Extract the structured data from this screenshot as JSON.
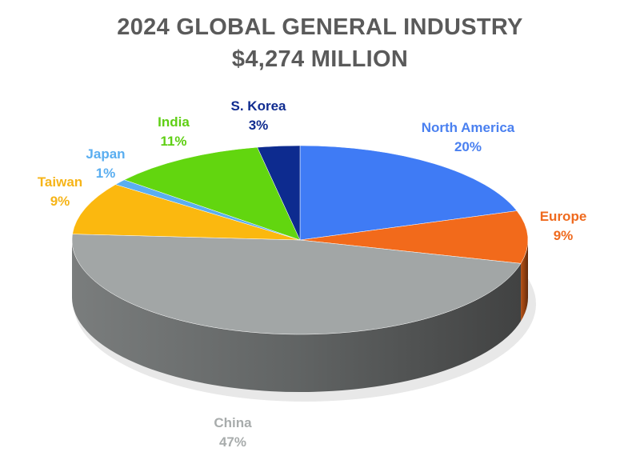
{
  "chart_data": {
    "type": "pie",
    "style": "3d",
    "title": "2024 GLOBAL GENERAL INDUSTRY",
    "subtitle": "$4,274 MILLION",
    "start": "12 o'clock, clockwise",
    "slices": [
      {
        "label": "North America",
        "value": 20,
        "pct_label": "20%",
        "color": "#3f7bf5"
      },
      {
        "label": "Europe",
        "value": 9,
        "pct_label": "9%",
        "color": "#f26a1b"
      },
      {
        "label": "China",
        "value": 47,
        "pct_label": "47%",
        "color": "#a2a6a6"
      },
      {
        "label": "Taiwan",
        "value": 9,
        "pct_label": "9%",
        "color": "#fbb80f"
      },
      {
        "label": "Japan",
        "value": 1,
        "pct_label": "1%",
        "color": "#5aaef0"
      },
      {
        "label": "India",
        "value": 11,
        "pct_label": "11%",
        "color": "#62d60f"
      },
      {
        "label": "S. Korea",
        "value": 3,
        "pct_label": "3%",
        "color": "#0d2b8f"
      }
    ]
  }
}
